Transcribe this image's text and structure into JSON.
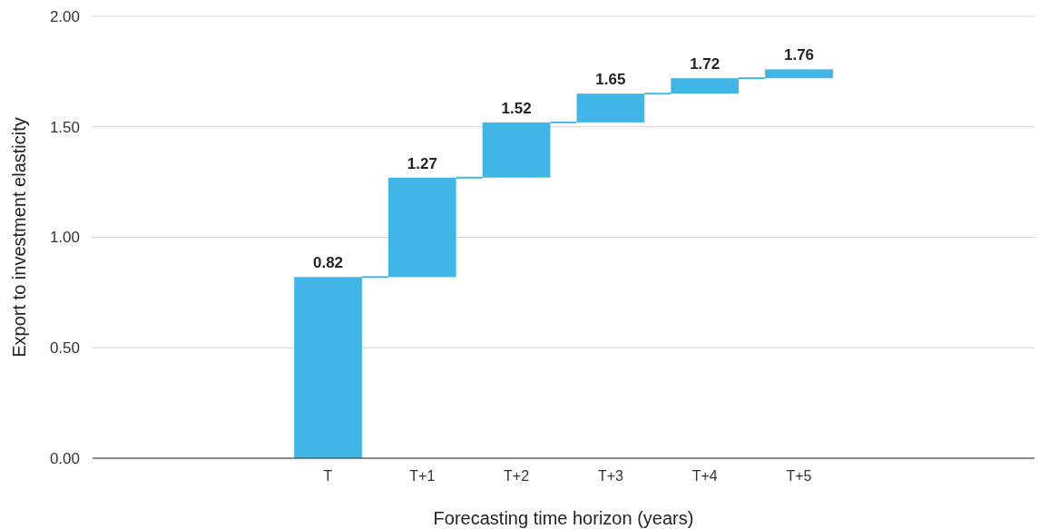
{
  "chart_data": {
    "type": "bar",
    "xlabel": "Forecasting time horizon (years)",
    "ylabel": "Export to investment elasticity",
    "categories": [
      null,
      null,
      "T",
      "T+1",
      "T+2",
      "T+3",
      "T+4",
      "T+5",
      null,
      null
    ],
    "values": [
      null,
      null,
      0.82,
      0.45,
      0.25,
      0.13,
      0.07,
      0.04,
      null,
      null
    ],
    "base": [
      null,
      null,
      0,
      0.82,
      1.27,
      1.52,
      1.65,
      1.72,
      null,
      null
    ],
    "value_labels": [
      null,
      null,
      "0.82",
      "1.27",
      "1.52",
      "1.65",
      "1.72",
      "1.76",
      null,
      null
    ],
    "color": "#41b6e6",
    "ylim": [
      0,
      2
    ],
    "yticks": [
      {
        "value": 0,
        "label": "0.00"
      },
      {
        "value": 0.5,
        "label": "0.50"
      },
      {
        "value": 1,
        "label": "1.00"
      },
      {
        "value": 1.5,
        "label": "1.50"
      },
      {
        "value": 2,
        "label": "2.00"
      }
    ],
    "grid": "y"
  }
}
